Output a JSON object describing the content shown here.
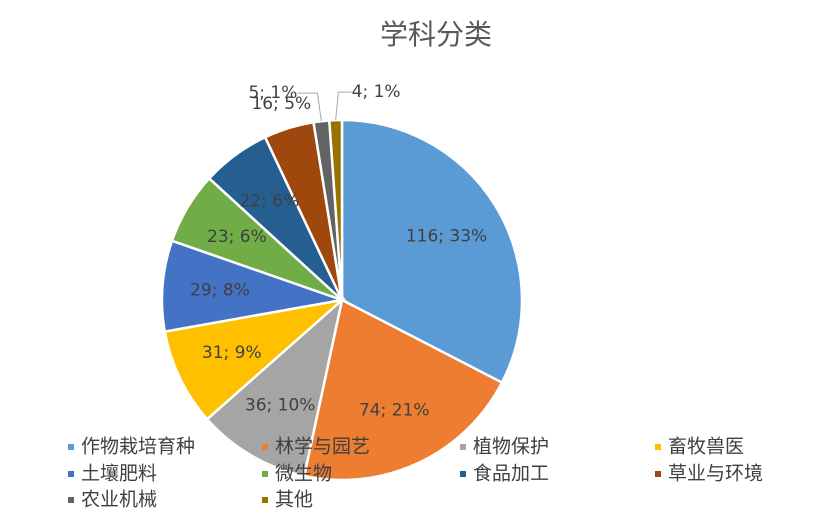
{
  "chart_data": {
    "type": "pie",
    "title": "学科分类",
    "categories": [
      "作物栽培育种",
      "林学与园艺",
      "植物保护",
      "畜牧兽医",
      "土壤肥料",
      "微生物",
      "食品加工",
      "草业与环境",
      "农业机械",
      "其他"
    ],
    "values": [
      116,
      74,
      36,
      31,
      29,
      23,
      22,
      16,
      5,
      4
    ],
    "value_labels": [
      "116; 33%",
      "74; 21%",
      "36; 10%",
      "31; 9%",
      "29; 8%",
      "23; 6%",
      "22; 6%",
      "16; 5%",
      "5; 1%",
      "4; 1%"
    ],
    "colors": [
      "#5b9bd5",
      "#ed7d31",
      "#a5a5a5",
      "#ffc000",
      "#4472c4",
      "#70ad47",
      "#255e91",
      "#9e480e",
      "#636363",
      "#997300"
    ],
    "legend": "bottom"
  }
}
